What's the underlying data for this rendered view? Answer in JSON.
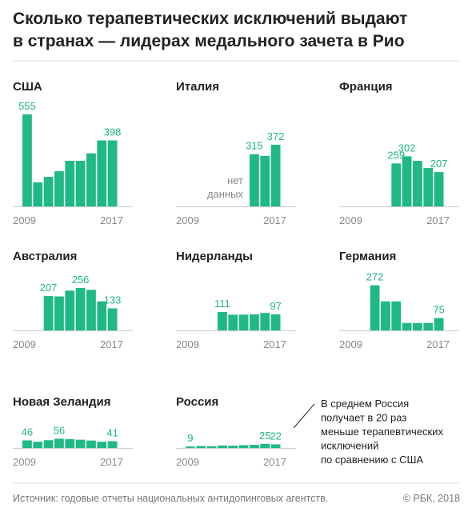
{
  "title": [
    "Сколько терапевтических исключений выдают",
    "в странах — лидерах медального зачета в Рио"
  ],
  "chart_data": [
    {
      "type": "bar",
      "title": "США",
      "color": "#20b886",
      "xticks": [
        2009,
        2017
      ],
      "xlim": [
        2009,
        2017
      ],
      "values": [
        555,
        145,
        178,
        212,
        275,
        275,
        320,
        398,
        398
      ],
      "value_labels": [
        "555",
        null,
        null,
        null,
        null,
        null,
        null,
        null,
        "398"
      ]
    },
    {
      "type": "bar",
      "title": "Италия",
      "color": "#20b886",
      "xticks": [
        2009,
        2017
      ],
      "xlim": [
        2009,
        2017
      ],
      "annotation": [
        "нет",
        "данных"
      ],
      "values": [
        null,
        null,
        null,
        null,
        null,
        null,
        315,
        305,
        372
      ],
      "value_labels": [
        null,
        null,
        null,
        null,
        null,
        null,
        "315",
        null,
        "372"
      ]
    },
    {
      "type": "bar",
      "title": "Франция",
      "color": "#20b886",
      "xticks": [
        2009,
        2017
      ],
      "xlim": [
        2009,
        2017
      ],
      "values": [
        null,
        null,
        null,
        null,
        259,
        302,
        275,
        232,
        207
      ],
      "value_labels": [
        null,
        null,
        null,
        null,
        "259",
        "302",
        null,
        null,
        "207"
      ]
    },
    {
      "type": "bar",
      "title": "Австралия",
      "color": "#20b886",
      "xticks": [
        2009,
        2017
      ],
      "xlim": [
        2009,
        2017
      ],
      "values": [
        null,
        null,
        207,
        205,
        240,
        256,
        245,
        175,
        133
      ],
      "value_labels": [
        null,
        null,
        "207",
        null,
        null,
        "256",
        null,
        null,
        "133"
      ]
    },
    {
      "type": "bar",
      "title": "Нидерланды",
      "color": "#20b886",
      "xticks": [
        2009,
        2017
      ],
      "xlim": [
        2009,
        2017
      ],
      "values": [
        null,
        null,
        null,
        111,
        95,
        95,
        97,
        105,
        97
      ],
      "value_labels": [
        null,
        null,
        null,
        "111",
        null,
        null,
        null,
        null,
        "97"
      ]
    },
    {
      "type": "bar",
      "title": "Германия",
      "color": "#20b886",
      "xticks": [
        2009,
        2017
      ],
      "xlim": [
        2009,
        2017
      ],
      "values": [
        null,
        null,
        272,
        175,
        175,
        45,
        45,
        45,
        75
      ],
      "value_labels": [
        null,
        null,
        "272",
        null,
        null,
        null,
        null,
        null,
        "75"
      ]
    },
    {
      "type": "bar",
      "title": "Новая Зеландия",
      "color": "#20b886",
      "xticks": [
        2009,
        2017
      ],
      "xlim": [
        2009,
        2017
      ],
      "values": [
        46,
        38,
        47,
        56,
        53,
        50,
        45,
        38,
        41
      ],
      "value_labels": [
        "46",
        null,
        null,
        "56",
        null,
        null,
        null,
        null,
        "41"
      ]
    },
    {
      "type": "bar",
      "title": "Россия",
      "color": "#20b886",
      "xticks": [
        2009,
        2017
      ],
      "xlim": [
        2009,
        2017
      ],
      "values": [
        9,
        12,
        11,
        15,
        14,
        17,
        19,
        25,
        22
      ],
      "value_labels": [
        "9",
        null,
        null,
        null,
        null,
        null,
        null,
        "25",
        "22"
      ]
    }
  ],
  "note": [
    "В среднем Россия",
    "получает в 20 раз",
    "меньше терапевтических",
    "исключений",
    "по сравнению с США"
  ],
  "source": "Источник: годовые отчеты национальных антидопинговых агентств.",
  "copyright": "© РБК, 2018"
}
